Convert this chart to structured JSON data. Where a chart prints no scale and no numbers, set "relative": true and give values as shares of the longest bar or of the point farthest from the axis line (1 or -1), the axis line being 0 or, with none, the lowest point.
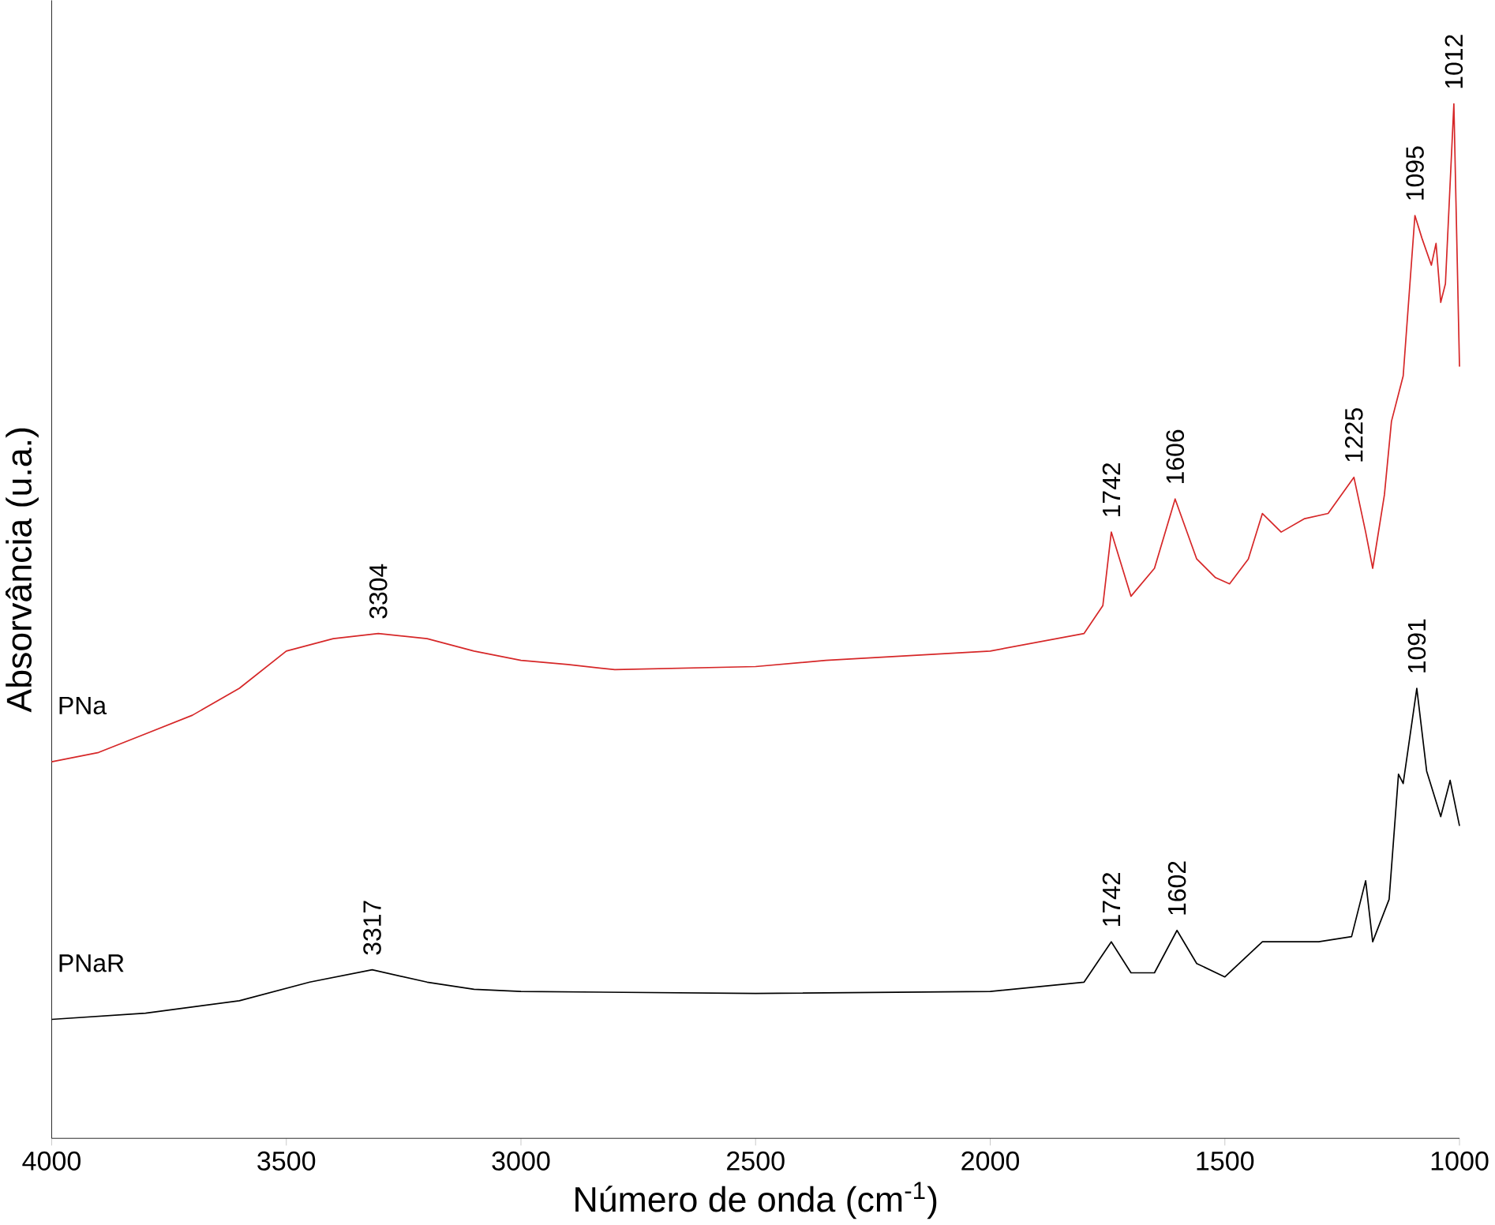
{
  "chart_data": {
    "type": "line",
    "relative": true,
    "xlabel": "Número de onda (cm$^{-1}$)",
    "ylabel": "Absorvância (u.a.)",
    "xlim": [
      4000,
      1000
    ],
    "xticks": [
      4000,
      3500,
      3000,
      2500,
      2000,
      1500,
      1000
    ],
    "grid": false,
    "series": [
      {
        "name": "PNa",
        "color": "#d62728",
        "x": [
          4000,
          3900,
          3800,
          3700,
          3600,
          3500,
          3400,
          3304,
          3200,
          3100,
          3000,
          2900,
          2800,
          2500,
          2350,
          2000,
          1800,
          1760,
          1742,
          1700,
          1650,
          1606,
          1560,
          1520,
          1490,
          1450,
          1420,
          1380,
          1330,
          1280,
          1225,
          1200,
          1185,
          1160,
          1145,
          1120,
          1095,
          1080,
          1060,
          1050,
          1040,
          1030,
          1012,
          1000
        ],
        "values": [
          0.364,
          0.373,
          0.391,
          0.409,
          0.435,
          0.471,
          0.483,
          0.488,
          0.483,
          0.471,
          0.462,
          0.458,
          0.453,
          0.456,
          0.462,
          0.471,
          0.488,
          0.515,
          0.586,
          0.524,
          0.551,
          0.618,
          0.56,
          0.542,
          0.536,
          0.56,
          0.604,
          0.586,
          0.599,
          0.604,
          0.639,
          0.586,
          0.551,
          0.622,
          0.693,
          0.737,
          0.892,
          0.87,
          0.844,
          0.865,
          0.808,
          0.826,
          1.0,
          0.746
        ]
      },
      {
        "name": "PNaR",
        "color": "#000000",
        "x": [
          4000,
          3800,
          3600,
          3450,
          3317,
          3200,
          3100,
          3000,
          2500,
          2000,
          1800,
          1742,
          1700,
          1650,
          1602,
          1560,
          1500,
          1420,
          1300,
          1230,
          1200,
          1185,
          1150,
          1130,
          1120,
          1091,
          1070,
          1040,
          1020,
          1000
        ],
        "values": [
          0.115,
          0.121,
          0.133,
          0.151,
          0.163,
          0.151,
          0.144,
          0.142,
          0.14,
          0.142,
          0.151,
          0.19,
          0.16,
          0.16,
          0.201,
          0.169,
          0.156,
          0.19,
          0.19,
          0.195,
          0.249,
          0.19,
          0.231,
          0.352,
          0.343,
          0.435,
          0.355,
          0.311,
          0.346,
          0.302
        ]
      }
    ],
    "annotations": [
      {
        "text": "3304",
        "x": 3304,
        "y": 0.488
      },
      {
        "text": "1742",
        "x": 1742,
        "y": 0.586
      },
      {
        "text": "1606",
        "x": 1606,
        "y": 0.618
      },
      {
        "text": "1225",
        "x": 1225,
        "y": 0.639
      },
      {
        "text": "1095",
        "x": 1095,
        "y": 0.892
      },
      {
        "text": "1012",
        "x": 1012,
        "y": 1.0
      },
      {
        "text": "3317",
        "x": 3317,
        "y": 0.163
      },
      {
        "text": "1742",
        "x": 1742,
        "y": 0.19
      },
      {
        "text": "1602",
        "x": 1602,
        "y": 0.201
      },
      {
        "text": "1091",
        "x": 1091,
        "y": 0.435
      }
    ]
  }
}
